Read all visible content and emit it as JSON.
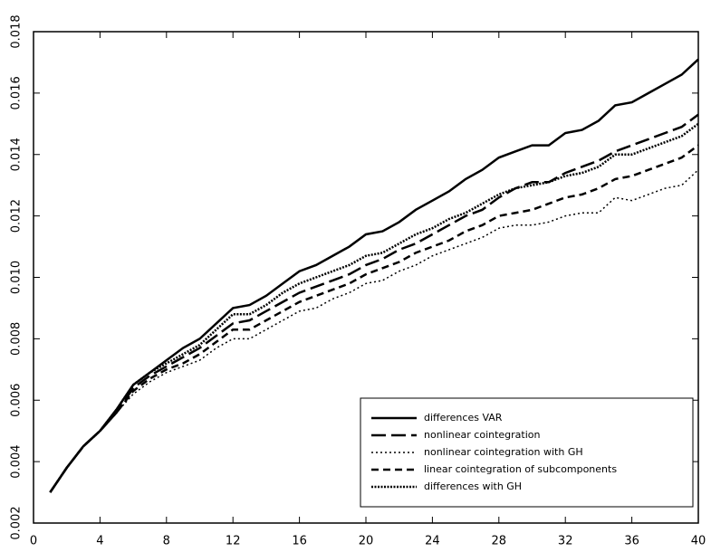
{
  "chart_data": {
    "type": "line",
    "x": [
      1,
      2,
      3,
      4,
      5,
      6,
      7,
      8,
      9,
      10,
      11,
      12,
      13,
      14,
      15,
      16,
      17,
      18,
      19,
      20,
      21,
      22,
      23,
      24,
      25,
      26,
      27,
      28,
      29,
      30,
      31,
      32,
      33,
      34,
      35,
      36,
      37,
      38,
      39,
      40
    ],
    "series": [
      {
        "name": "differences VAR",
        "color": "#000000",
        "style": "solid",
        "values": [
          0.003,
          0.0038,
          0.0045,
          0.005,
          0.0057,
          0.0065,
          0.0069,
          0.0073,
          0.0077,
          0.008,
          0.0085,
          0.009,
          0.0091,
          0.0094,
          0.0098,
          0.0102,
          0.0104,
          0.0107,
          0.011,
          0.0114,
          0.0115,
          0.0118,
          0.0122,
          0.0125,
          0.0128,
          0.0132,
          0.0135,
          0.0139,
          0.0141,
          0.0143,
          0.0143,
          0.0147,
          0.0148,
          0.0151,
          0.0156,
          0.0157,
          0.016,
          0.0163,
          0.0166,
          0.0171
        ]
      },
      {
        "name": "nonlinear cointegration",
        "color": "#000000",
        "style": "longdash",
        "values": [
          0.003,
          0.0038,
          0.0045,
          0.005,
          0.0056,
          0.0064,
          0.0068,
          0.0071,
          0.0074,
          0.0077,
          0.0081,
          0.0085,
          0.0086,
          0.0089,
          0.0092,
          0.0095,
          0.0097,
          0.0099,
          0.0101,
          0.0104,
          0.0106,
          0.0109,
          0.0111,
          0.0114,
          0.0117,
          0.012,
          0.0122,
          0.0126,
          0.0129,
          0.0131,
          0.0131,
          0.0134,
          0.0136,
          0.0138,
          0.0141,
          0.0143,
          0.0145,
          0.0147,
          0.0149,
          0.0153
        ]
      },
      {
        "name": "nonlinear cointegration with GH",
        "color": "#000000",
        "style": "dot",
        "values": [
          0.003,
          0.0038,
          0.0045,
          0.005,
          0.0056,
          0.0062,
          0.0066,
          0.0069,
          0.0071,
          0.0073,
          0.0077,
          0.008,
          0.008,
          0.0083,
          0.0086,
          0.0089,
          0.009,
          0.0093,
          0.0095,
          0.0098,
          0.0099,
          0.0102,
          0.0104,
          0.0107,
          0.0109,
          0.0111,
          0.0113,
          0.0116,
          0.0117,
          0.0117,
          0.0118,
          0.012,
          0.0121,
          0.0121,
          0.0126,
          0.0125,
          0.0127,
          0.0129,
          0.013,
          0.0135
        ]
      },
      {
        "name": "linear cointegration of subcomponents",
        "color": "#000000",
        "style": "dash",
        "values": [
          0.003,
          0.0038,
          0.0045,
          0.005,
          0.0056,
          0.0063,
          0.0067,
          0.007,
          0.0072,
          0.0075,
          0.0079,
          0.0083,
          0.0083,
          0.0086,
          0.0089,
          0.0092,
          0.0094,
          0.0096,
          0.0098,
          0.0101,
          0.0103,
          0.0105,
          0.0108,
          0.011,
          0.0112,
          0.0115,
          0.0117,
          0.012,
          0.0121,
          0.0122,
          0.0124,
          0.0126,
          0.0127,
          0.0129,
          0.0132,
          0.0133,
          0.0135,
          0.0137,
          0.0139,
          0.0143
        ]
      },
      {
        "name": "differences with GH",
        "color": "#000000",
        "style": "densedot",
        "values": [
          0.003,
          0.0038,
          0.0045,
          0.005,
          0.0057,
          0.0065,
          0.0069,
          0.0072,
          0.0075,
          0.0078,
          0.0083,
          0.0088,
          0.0088,
          0.0091,
          0.0095,
          0.0098,
          0.01,
          0.0102,
          0.0104,
          0.0107,
          0.0108,
          0.0111,
          0.0114,
          0.0116,
          0.0119,
          0.0121,
          0.0124,
          0.0127,
          0.0129,
          0.013,
          0.0131,
          0.0133,
          0.0134,
          0.0136,
          0.014,
          0.014,
          0.0142,
          0.0144,
          0.0146,
          0.015
        ]
      }
    ],
    "xlim": [
      0,
      40
    ],
    "xticks": [
      0,
      4,
      8,
      12,
      16,
      20,
      24,
      28,
      32,
      36,
      40
    ],
    "ylim": [
      0.002,
      0.018
    ],
    "yticks": [
      0.002,
      0.004,
      0.006,
      0.008,
      {
        "value": 0.01,
        "label": "0.010"
      },
      0.012,
      0.014,
      0.016,
      0.018
    ],
    "legend": "lower right"
  }
}
